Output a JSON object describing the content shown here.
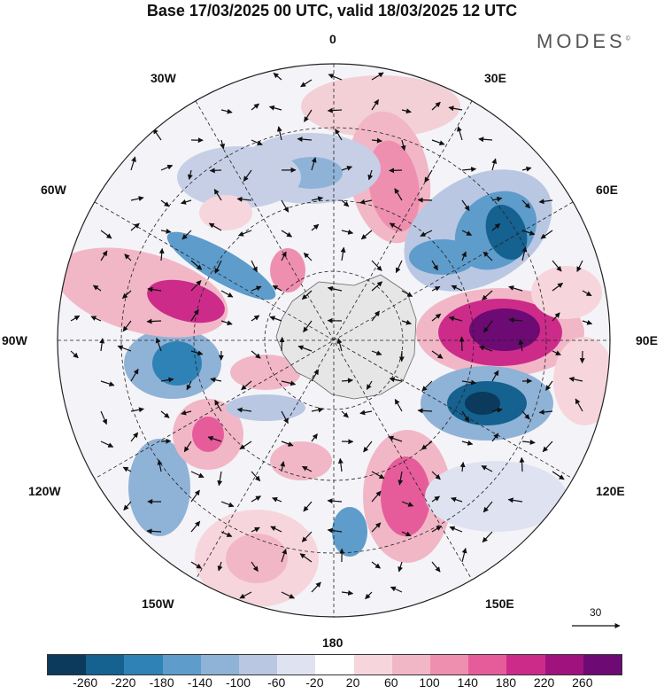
{
  "header": {
    "title": "Base 17/03/2025 00 UTC, valid 18/03/2025 12 UTC",
    "brand": "MODES"
  },
  "map": {
    "projection": "south-polar-stereographic",
    "longitude_labels": {
      "north": "0",
      "lon_30e": "30E",
      "lon_60e": "60E",
      "lon_90e": "90E",
      "lon_120e": "120E",
      "lon_150e": "150E",
      "south": "180",
      "lon_150w": "150W",
      "lon_120w": "120W",
      "lon_90w": "90W",
      "lon_60w": "60W",
      "lon_30w": "30W"
    },
    "land_color": "#e6e6e6"
  },
  "vector_scale": {
    "label": "30"
  },
  "colorbar": {
    "colors": [
      "#0b3a5c",
      "#15618f",
      "#2f82b5",
      "#5e9ccb",
      "#8fb2d7",
      "#b9c7e3",
      "#dfe2f1",
      "#ffffff",
      "#f6d6dc",
      "#f2b7c6",
      "#ee8fb0",
      "#e65c9b",
      "#cc2b8a",
      "#a0127e",
      "#6d0a73"
    ],
    "tick_labels": [
      "-260",
      "-220",
      "-180",
      "-140",
      "-100",
      "-60",
      "-20",
      "20",
      "60",
      "100",
      "140",
      "180",
      "220",
      "260"
    ]
  }
}
